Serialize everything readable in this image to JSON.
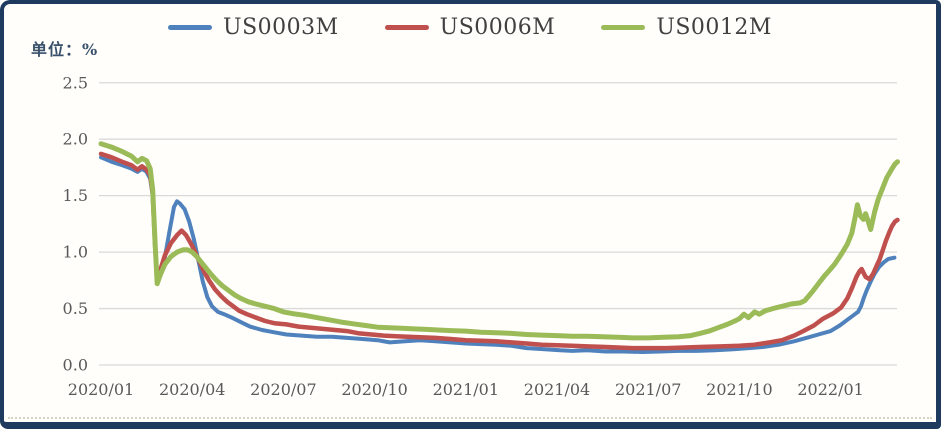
{
  "unit_label": "单位：%",
  "panel": {
    "border_color": "#1e3a5f",
    "background": "#fffefb"
  },
  "axis": {
    "text_color": "#595959",
    "grid_color": "#d9d9d9",
    "font_size": 16
  },
  "chart_data": {
    "type": "line",
    "title": "",
    "unit_label": "单位：%",
    "xlabel": "",
    "ylabel": "单位：%",
    "ylim": [
      0.0,
      2.5
    ],
    "y_ticks": [
      "0.0",
      "0.5",
      "1.0",
      "1.5",
      "2.0",
      "2.5"
    ],
    "x_tick_labels": [
      "2020/01",
      "2020/04",
      "2020/07",
      "2020/10",
      "2021/01",
      "2021/04",
      "2021/07",
      "2021/10",
      "2022/01"
    ],
    "x_unit": "months since 2020/01",
    "xlim": [
      0,
      26.3
    ],
    "legend_position": "top-center",
    "grid": "horizontal",
    "series": [
      {
        "name": "US0003M",
        "color": "#4f81bd",
        "width": 4,
        "points": [
          [
            0,
            1.84
          ],
          [
            0.35,
            1.8
          ],
          [
            0.7,
            1.77
          ],
          [
            1.0,
            1.74
          ],
          [
            1.2,
            1.71
          ],
          [
            1.35,
            1.74
          ],
          [
            1.5,
            1.71
          ],
          [
            1.62,
            1.65
          ],
          [
            1.7,
            1.5
          ],
          [
            1.78,
            1.05
          ],
          [
            1.85,
            0.76
          ],
          [
            1.95,
            0.82
          ],
          [
            2.1,
            0.95
          ],
          [
            2.25,
            1.18
          ],
          [
            2.4,
            1.4
          ],
          [
            2.5,
            1.45
          ],
          [
            2.6,
            1.43
          ],
          [
            2.75,
            1.38
          ],
          [
            2.9,
            1.27
          ],
          [
            3.05,
            1.12
          ],
          [
            3.2,
            0.93
          ],
          [
            3.35,
            0.74
          ],
          [
            3.5,
            0.6
          ],
          [
            3.65,
            0.52
          ],
          [
            3.85,
            0.47
          ],
          [
            4.05,
            0.45
          ],
          [
            4.3,
            0.42
          ],
          [
            4.6,
            0.38
          ],
          [
            4.9,
            0.34
          ],
          [
            5.3,
            0.31
          ],
          [
            5.7,
            0.29
          ],
          [
            6.1,
            0.27
          ],
          [
            6.6,
            0.26
          ],
          [
            7.1,
            0.25
          ],
          [
            7.6,
            0.25
          ],
          [
            8.1,
            0.24
          ],
          [
            8.6,
            0.23
          ],
          [
            9.1,
            0.22
          ],
          [
            9.5,
            0.2
          ],
          [
            10.0,
            0.21
          ],
          [
            10.5,
            0.22
          ],
          [
            11.0,
            0.21
          ],
          [
            11.5,
            0.2
          ],
          [
            12.0,
            0.19
          ],
          [
            12.5,
            0.185
          ],
          [
            13.0,
            0.18
          ],
          [
            13.5,
            0.17
          ],
          [
            14.0,
            0.15
          ],
          [
            14.6,
            0.14
          ],
          [
            15.1,
            0.13
          ],
          [
            15.5,
            0.125
          ],
          [
            16.0,
            0.13
          ],
          [
            16.6,
            0.12
          ],
          [
            17.2,
            0.12
          ],
          [
            17.8,
            0.115
          ],
          [
            18.4,
            0.12
          ],
          [
            19.0,
            0.125
          ],
          [
            19.6,
            0.125
          ],
          [
            20.2,
            0.13
          ],
          [
            20.8,
            0.14
          ],
          [
            21.3,
            0.15
          ],
          [
            21.8,
            0.16
          ],
          [
            22.3,
            0.18
          ],
          [
            22.8,
            0.21
          ],
          [
            23.2,
            0.24
          ],
          [
            23.6,
            0.27
          ],
          [
            24.0,
            0.3
          ],
          [
            24.3,
            0.35
          ],
          [
            24.55,
            0.4
          ],
          [
            24.75,
            0.44
          ],
          [
            24.9,
            0.47
          ],
          [
            25.0,
            0.52
          ],
          [
            25.1,
            0.6
          ],
          [
            25.2,
            0.67
          ],
          [
            25.32,
            0.74
          ],
          [
            25.45,
            0.81
          ],
          [
            25.6,
            0.87
          ],
          [
            25.75,
            0.91
          ],
          [
            25.9,
            0.94
          ],
          [
            26.1,
            0.95
          ]
        ]
      },
      {
        "name": "US0006M",
        "color": "#c0504d",
        "width": 4.5,
        "points": [
          [
            0,
            1.87
          ],
          [
            0.35,
            1.84
          ],
          [
            0.7,
            1.8
          ],
          [
            1.0,
            1.77
          ],
          [
            1.2,
            1.73
          ],
          [
            1.35,
            1.76
          ],
          [
            1.5,
            1.73
          ],
          [
            1.62,
            1.68
          ],
          [
            1.7,
            1.52
          ],
          [
            1.78,
            1.06
          ],
          [
            1.85,
            0.74
          ],
          [
            1.95,
            0.84
          ],
          [
            2.1,
            0.97
          ],
          [
            2.3,
            1.08
          ],
          [
            2.5,
            1.15
          ],
          [
            2.65,
            1.19
          ],
          [
            2.8,
            1.15
          ],
          [
            2.95,
            1.08
          ],
          [
            3.1,
            1.0
          ],
          [
            3.25,
            0.91
          ],
          [
            3.4,
            0.82
          ],
          [
            3.55,
            0.75
          ],
          [
            3.75,
            0.67
          ],
          [
            3.95,
            0.61
          ],
          [
            4.15,
            0.56
          ],
          [
            4.35,
            0.52
          ],
          [
            4.55,
            0.48
          ],
          [
            4.8,
            0.45
          ],
          [
            5.1,
            0.42
          ],
          [
            5.4,
            0.39
          ],
          [
            5.7,
            0.37
          ],
          [
            6.1,
            0.36
          ],
          [
            6.5,
            0.34
          ],
          [
            6.9,
            0.33
          ],
          [
            7.3,
            0.32
          ],
          [
            7.7,
            0.31
          ],
          [
            8.1,
            0.3
          ],
          [
            8.5,
            0.28
          ],
          [
            8.9,
            0.27
          ],
          [
            9.3,
            0.26
          ],
          [
            9.7,
            0.255
          ],
          [
            10.1,
            0.25
          ],
          [
            10.5,
            0.245
          ],
          [
            11.0,
            0.24
          ],
          [
            11.5,
            0.23
          ],
          [
            12.0,
            0.22
          ],
          [
            12.5,
            0.215
          ],
          [
            13.0,
            0.21
          ],
          [
            13.5,
            0.2
          ],
          [
            14.0,
            0.19
          ],
          [
            14.5,
            0.18
          ],
          [
            15.0,
            0.175
          ],
          [
            15.5,
            0.17
          ],
          [
            16.0,
            0.165
          ],
          [
            16.5,
            0.16
          ],
          [
            17.0,
            0.155
          ],
          [
            17.5,
            0.15
          ],
          [
            18.0,
            0.15
          ],
          [
            18.6,
            0.15
          ],
          [
            19.2,
            0.155
          ],
          [
            19.8,
            0.16
          ],
          [
            20.4,
            0.165
          ],
          [
            21.0,
            0.17
          ],
          [
            21.5,
            0.18
          ],
          [
            22.0,
            0.2
          ],
          [
            22.4,
            0.22
          ],
          [
            22.8,
            0.26
          ],
          [
            23.1,
            0.3
          ],
          [
            23.45,
            0.35
          ],
          [
            23.75,
            0.41
          ],
          [
            24.1,
            0.46
          ],
          [
            24.35,
            0.51
          ],
          [
            24.55,
            0.59
          ],
          [
            24.7,
            0.68
          ],
          [
            24.85,
            0.78
          ],
          [
            24.95,
            0.83
          ],
          [
            25.02,
            0.85
          ],
          [
            25.15,
            0.78
          ],
          [
            25.28,
            0.76
          ],
          [
            25.4,
            0.81
          ],
          [
            25.5,
            0.87
          ],
          [
            25.62,
            0.94
          ],
          [
            25.72,
            1.02
          ],
          [
            25.82,
            1.1
          ],
          [
            25.92,
            1.17
          ],
          [
            26.02,
            1.23
          ],
          [
            26.12,
            1.27
          ],
          [
            26.2,
            1.285
          ]
        ]
      },
      {
        "name": "US0012M",
        "color": "#9bbb59",
        "width": 5,
        "points": [
          [
            0,
            1.96
          ],
          [
            0.35,
            1.93
          ],
          [
            0.7,
            1.89
          ],
          [
            1.0,
            1.85
          ],
          [
            1.2,
            1.8
          ],
          [
            1.35,
            1.83
          ],
          [
            1.5,
            1.81
          ],
          [
            1.62,
            1.74
          ],
          [
            1.7,
            1.55
          ],
          [
            1.78,
            1.08
          ],
          [
            1.85,
            0.72
          ],
          [
            1.95,
            0.8
          ],
          [
            2.1,
            0.89
          ],
          [
            2.3,
            0.96
          ],
          [
            2.5,
            1.0
          ],
          [
            2.7,
            1.02
          ],
          [
            2.85,
            1.02
          ],
          [
            3.0,
            1.0
          ],
          [
            3.15,
            0.96
          ],
          [
            3.3,
            0.91
          ],
          [
            3.45,
            0.86
          ],
          [
            3.6,
            0.81
          ],
          [
            3.8,
            0.75
          ],
          [
            4.0,
            0.7
          ],
          [
            4.2,
            0.66
          ],
          [
            4.4,
            0.62
          ],
          [
            4.6,
            0.59
          ],
          [
            4.85,
            0.56
          ],
          [
            5.1,
            0.54
          ],
          [
            5.4,
            0.52
          ],
          [
            5.7,
            0.5
          ],
          [
            6.0,
            0.47
          ],
          [
            6.3,
            0.455
          ],
          [
            6.7,
            0.44
          ],
          [
            7.1,
            0.42
          ],
          [
            7.5,
            0.4
          ],
          [
            7.9,
            0.38
          ],
          [
            8.3,
            0.365
          ],
          [
            8.7,
            0.35
          ],
          [
            9.1,
            0.335
          ],
          [
            9.5,
            0.33
          ],
          [
            9.9,
            0.325
          ],
          [
            10.3,
            0.32
          ],
          [
            10.7,
            0.315
          ],
          [
            11.1,
            0.31
          ],
          [
            11.5,
            0.305
          ],
          [
            12.0,
            0.3
          ],
          [
            12.5,
            0.29
          ],
          [
            13.0,
            0.285
          ],
          [
            13.5,
            0.28
          ],
          [
            14.0,
            0.27
          ],
          [
            14.5,
            0.265
          ],
          [
            15.0,
            0.26
          ],
          [
            15.5,
            0.255
          ],
          [
            16.0,
            0.255
          ],
          [
            16.5,
            0.25
          ],
          [
            17.0,
            0.245
          ],
          [
            17.5,
            0.24
          ],
          [
            18.0,
            0.24
          ],
          [
            18.5,
            0.245
          ],
          [
            19.0,
            0.25
          ],
          [
            19.4,
            0.26
          ],
          [
            19.7,
            0.28
          ],
          [
            20.0,
            0.3
          ],
          [
            20.3,
            0.33
          ],
          [
            20.6,
            0.36
          ],
          [
            20.85,
            0.39
          ],
          [
            21.0,
            0.41
          ],
          [
            21.15,
            0.45
          ],
          [
            21.3,
            0.42
          ],
          [
            21.5,
            0.47
          ],
          [
            21.65,
            0.45
          ],
          [
            21.85,
            0.48
          ],
          [
            22.1,
            0.5
          ],
          [
            22.4,
            0.52
          ],
          [
            22.7,
            0.54
          ],
          [
            23.0,
            0.55
          ],
          [
            23.15,
            0.57
          ],
          [
            23.4,
            0.65
          ],
          [
            23.6,
            0.72
          ],
          [
            23.8,
            0.79
          ],
          [
            24.0,
            0.85
          ],
          [
            24.15,
            0.9
          ],
          [
            24.35,
            0.98
          ],
          [
            24.55,
            1.07
          ],
          [
            24.7,
            1.17
          ],
          [
            24.8,
            1.3
          ],
          [
            24.88,
            1.42
          ],
          [
            24.98,
            1.32
          ],
          [
            25.08,
            1.29
          ],
          [
            25.15,
            1.34
          ],
          [
            25.25,
            1.26
          ],
          [
            25.32,
            1.2
          ],
          [
            25.45,
            1.36
          ],
          [
            25.57,
            1.47
          ],
          [
            25.7,
            1.56
          ],
          [
            25.85,
            1.66
          ],
          [
            26.0,
            1.73
          ],
          [
            26.12,
            1.78
          ],
          [
            26.2,
            1.8
          ]
        ]
      }
    ]
  }
}
